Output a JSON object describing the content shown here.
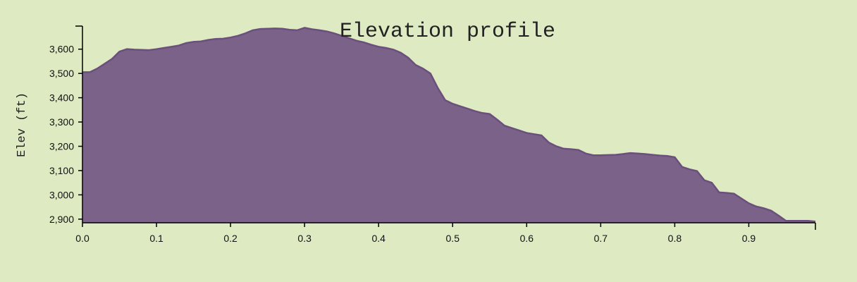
{
  "chart_data": {
    "type": "area",
    "title": "Elevation profile",
    "xlabel": "",
    "ylabel": "Elev (ft)",
    "xlim": [
      0,
      0.99
    ],
    "ylim": [
      2885,
      3695
    ],
    "x_ticks": [
      "0.0",
      "0.1",
      "0.2",
      "0.3",
      "0.4",
      "0.5",
      "0.6",
      "0.7",
      "0.8",
      "0.9"
    ],
    "y_ticks": [
      "2,900",
      "3,000",
      "3,100",
      "3,200",
      "3,300",
      "3,400",
      "3,500",
      "3,600"
    ],
    "grid": false,
    "colors": {
      "fill": "#7b6289",
      "stroke": "#6b4f7c",
      "background": "#ddeac2"
    },
    "series": [
      {
        "x": [
          0.0,
          0.01,
          0.02,
          0.03,
          0.04,
          0.05,
          0.06,
          0.07,
          0.08,
          0.09,
          0.1,
          0.11,
          0.12,
          0.13,
          0.14,
          0.15,
          0.16,
          0.17,
          0.18,
          0.19,
          0.2,
          0.21,
          0.22,
          0.23,
          0.24,
          0.25,
          0.26,
          0.27,
          0.28,
          0.29,
          0.3,
          0.31,
          0.32,
          0.33,
          0.34,
          0.35,
          0.36,
          0.37,
          0.38,
          0.39,
          0.4,
          0.41,
          0.42,
          0.43,
          0.44,
          0.45,
          0.46,
          0.47,
          0.48,
          0.49,
          0.5,
          0.51,
          0.52,
          0.53,
          0.54,
          0.55,
          0.56,
          0.57,
          0.58,
          0.59,
          0.6,
          0.61,
          0.62,
          0.63,
          0.64,
          0.65,
          0.66,
          0.67,
          0.68,
          0.69,
          0.7,
          0.71,
          0.72,
          0.73,
          0.74,
          0.75,
          0.76,
          0.77,
          0.78,
          0.79,
          0.8,
          0.81,
          0.82,
          0.83,
          0.84,
          0.85,
          0.86,
          0.87,
          0.88,
          0.89,
          0.9,
          0.91,
          0.92,
          0.93,
          0.94,
          0.95,
          0.96,
          0.97,
          0.98,
          0.99
        ],
        "values": [
          3505,
          3505,
          3520,
          3540,
          3560,
          3590,
          3600,
          3598,
          3597,
          3596,
          3600,
          3605,
          3610,
          3615,
          3625,
          3630,
          3632,
          3638,
          3642,
          3643,
          3648,
          3655,
          3665,
          3678,
          3683,
          3684,
          3685,
          3684,
          3680,
          3678,
          3688,
          3682,
          3678,
          3673,
          3665,
          3655,
          3645,
          3635,
          3628,
          3618,
          3610,
          3605,
          3598,
          3585,
          3565,
          3535,
          3520,
          3500,
          3440,
          3390,
          3375,
          3365,
          3355,
          3345,
          3337,
          3333,
          3310,
          3285,
          3275,
          3265,
          3255,
          3250,
          3245,
          3215,
          3200,
          3190,
          3188,
          3185,
          3170,
          3163,
          3163,
          3164,
          3165,
          3168,
          3172,
          3170,
          3168,
          3165,
          3162,
          3160,
          3155,
          3115,
          3105,
          3098,
          3060,
          3050,
          3010,
          3008,
          3005,
          2985,
          2965,
          2952,
          2945,
          2935,
          2915,
          2893,
          2893,
          2893,
          2893,
          2890
        ]
      }
    ]
  }
}
